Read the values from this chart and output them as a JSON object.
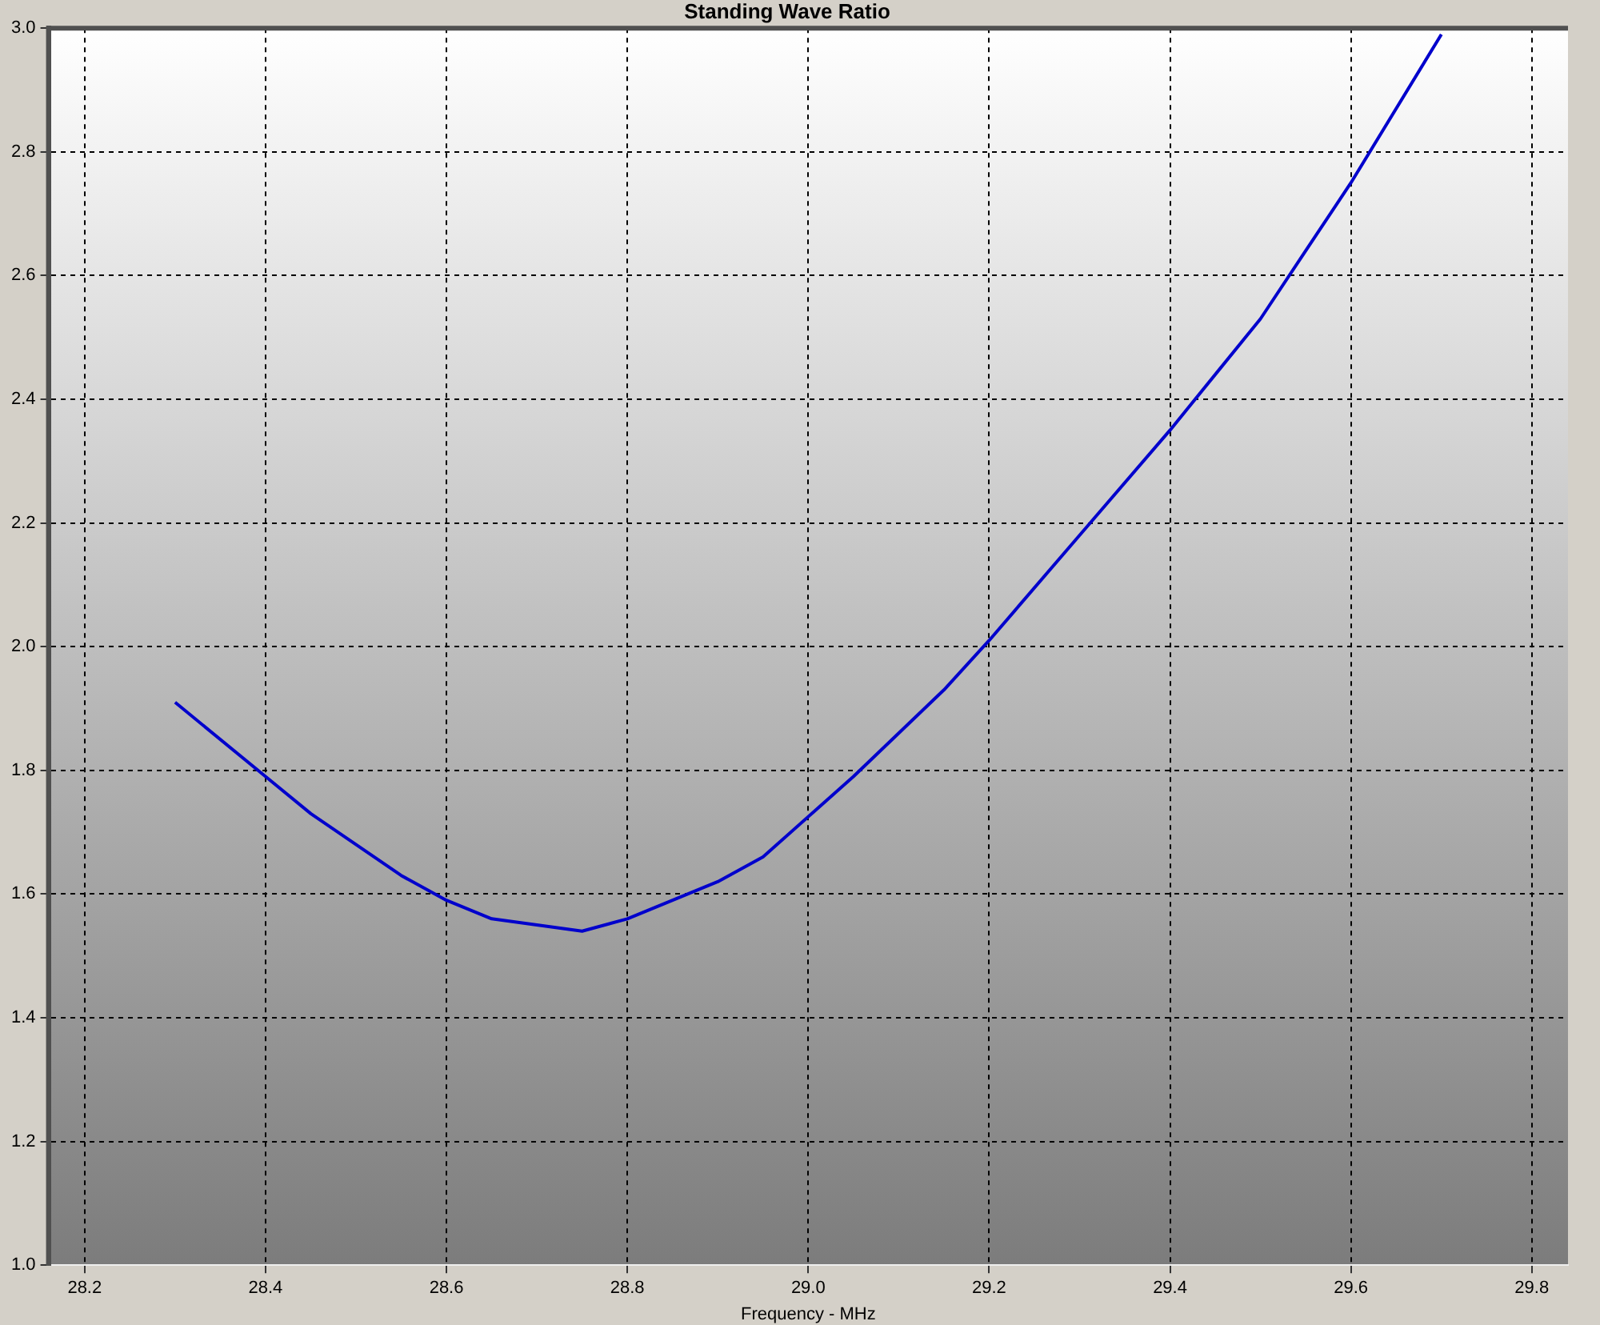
{
  "chart_data": {
    "type": "line",
    "title": "Standing Wave Ratio",
    "xlabel": "Frequency - MHz",
    "x": [
      28.3,
      28.4,
      28.45,
      28.55,
      28.6,
      28.65,
      28.75,
      28.8,
      28.9,
      28.95,
      29.05,
      29.15,
      29.2,
      29.3,
      29.4,
      29.5,
      29.55,
      29.6,
      29.7
    ],
    "series": [
      {
        "color": "#0000cc",
        "values": [
          1.91,
          1.79,
          1.73,
          1.63,
          1.59,
          1.56,
          1.54,
          1.56,
          1.62,
          1.66,
          1.79,
          1.93,
          2.01,
          2.18,
          2.35,
          2.53,
          2.64,
          2.75,
          2.99
        ]
      }
    ],
    "xlim": [
      28.16,
      29.84
    ],
    "xticks": [
      28.2,
      28.4,
      28.6,
      28.8,
      {
        "value": 29,
        "label": "29.0"
      },
      29.2,
      29.4,
      29.6,
      29.8
    ],
    "ylim": [
      1.0,
      3.0
    ],
    "yticks": [
      {
        "value": 1,
        "label": "1.0"
      },
      1.2,
      1.4,
      1.6,
      1.8,
      {
        "value": 2,
        "label": "2.0"
      },
      2.2,
      2.4,
      2.6,
      2.8,
      {
        "value": 3,
        "label": "3.0"
      }
    ],
    "grid": true,
    "legend": false,
    "marker": "none",
    "line_style": "solid"
  }
}
